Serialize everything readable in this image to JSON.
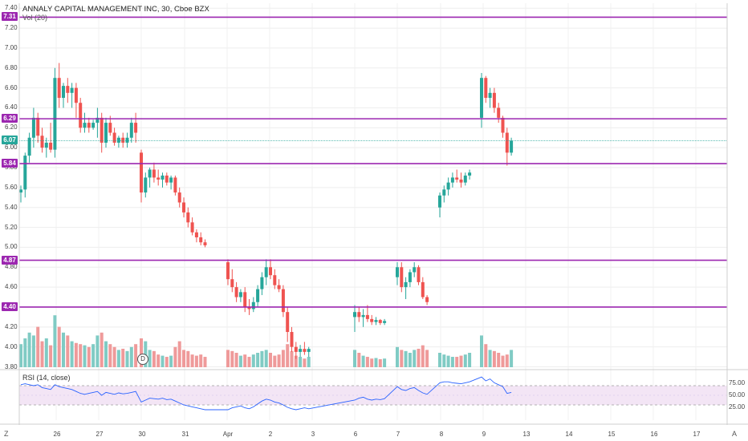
{
  "chart_title": "ANNALY CAPITAL MANAGEMENT INC, 30, Cboe BZX",
  "volume_label": "Vol (20)",
  "rsi_label": "RSI (14, close)",
  "corner_left": "Z",
  "corner_right": "A",
  "dividend_marker": "D",
  "price_ticks": [
    "7.40",
    "7.20",
    "7.00",
    "6.80",
    "6.60",
    "6.40",
    "6.20",
    "6.00",
    "5.80",
    "5.60",
    "5.40",
    "5.20",
    "5.00",
    "4.80",
    "4.60",
    "4.40",
    "4.20",
    "4.00",
    "3.80"
  ],
  "rsi_ticks": [
    "75.00",
    "50.00",
    "25.00"
  ],
  "date_ticks": [
    "26",
    "27",
    "30",
    "31",
    "Apr",
    "2",
    "3",
    "6",
    "7",
    "8",
    "9",
    "13",
    "14",
    "15",
    "16",
    "17"
  ],
  "levels": [
    {
      "value": "7.31",
      "color": "#9c27b0"
    },
    {
      "value": "6.29",
      "color": "#9c27b0"
    },
    {
      "value": "5.84",
      "color": "#9c27b0"
    },
    {
      "value": "4.87",
      "color": "#9c27b0"
    },
    {
      "value": "4.40",
      "color": "#9c27b0"
    }
  ],
  "last_price": {
    "value": "6.07",
    "color": "#26a69a"
  },
  "colors": {
    "up": "#26a69a",
    "down": "#ef5350",
    "level": "#9c27b0",
    "rsi_band": "#f3e5f5",
    "rsi_line": "#2962ff"
  },
  "chart_data": {
    "type": "candlestick",
    "y_range": [
      3.78,
      7.45
    ],
    "rsi_range": [
      0,
      100
    ],
    "candles": [
      [
        5.55,
        5.62,
        5.45,
        5.58
      ],
      [
        5.58,
        5.95,
        5.5,
        5.92
      ],
      [
        5.92,
        6.15,
        5.85,
        6.1
      ],
      [
        6.1,
        6.4,
        6.0,
        6.3
      ],
      [
        6.3,
        6.35,
        6.05,
        6.12
      ],
      [
        6.12,
        6.2,
        5.95,
        6.0
      ],
      [
        6.0,
        6.1,
        5.9,
        6.05
      ],
      [
        6.05,
        6.25,
        5.95,
        5.98
      ],
      [
        5.98,
        6.8,
        5.9,
        6.7
      ],
      [
        6.7,
        6.85,
        6.4,
        6.5
      ],
      [
        6.5,
        6.65,
        6.4,
        6.62
      ],
      [
        6.62,
        6.7,
        6.45,
        6.55
      ],
      [
        6.55,
        6.65,
        6.4,
        6.6
      ],
      [
        6.6,
        6.65,
        6.3,
        6.45
      ],
      [
        6.45,
        6.5,
        6.15,
        6.2
      ],
      [
        6.2,
        6.35,
        6.15,
        6.25
      ],
      [
        6.25,
        6.3,
        6.15,
        6.2
      ],
      [
        6.2,
        6.28,
        6.18,
        6.25
      ],
      [
        6.25,
        6.4,
        6.1,
        6.3
      ],
      [
        6.3,
        6.35,
        5.95,
        6.05
      ],
      [
        6.05,
        6.3,
        6.0,
        6.25
      ],
      [
        6.25,
        6.32,
        6.12,
        6.15
      ],
      [
        6.15,
        6.2,
        6.02,
        6.05
      ],
      [
        6.05,
        6.12,
        6.0,
        6.1
      ],
      [
        6.1,
        6.15,
        6.0,
        6.05
      ],
      [
        6.05,
        6.15,
        6.0,
        6.1
      ],
      [
        6.1,
        6.3,
        6.05,
        6.25
      ],
      [
        6.25,
        6.35,
        6.05,
        6.15
      ],
      [
        5.95,
        5.98,
        5.45,
        5.55
      ],
      [
        5.55,
        5.75,
        5.5,
        5.7
      ],
      [
        5.7,
        5.8,
        5.6,
        5.78
      ],
      [
        5.78,
        5.85,
        5.65,
        5.7
      ],
      [
        5.7,
        5.78,
        5.62,
        5.68
      ],
      [
        5.68,
        5.75,
        5.6,
        5.72
      ],
      [
        5.72,
        5.75,
        5.62,
        5.65
      ],
      [
        5.65,
        5.72,
        5.58,
        5.7
      ],
      [
        5.7,
        5.72,
        5.52,
        5.55
      ],
      [
        5.55,
        5.6,
        5.4,
        5.45
      ],
      [
        5.45,
        5.5,
        5.3,
        5.35
      ],
      [
        5.35,
        5.4,
        5.2,
        5.25
      ],
      [
        5.25,
        5.3,
        5.12,
        5.15
      ],
      [
        5.15,
        5.18,
        5.05,
        5.1
      ],
      [
        5.1,
        5.15,
        5.02,
        5.05
      ],
      [
        5.05,
        5.08,
        5.0,
        5.02
      ],
      [
        4.85,
        4.88,
        4.62,
        4.68
      ],
      [
        4.68,
        4.78,
        4.55,
        4.6
      ],
      [
        4.6,
        4.65,
        4.45,
        4.5
      ],
      [
        4.5,
        4.58,
        4.45,
        4.55
      ],
      [
        4.55,
        4.6,
        4.35,
        4.4
      ],
      [
        4.4,
        4.48,
        4.32,
        4.38
      ],
      [
        4.38,
        4.5,
        4.35,
        4.45
      ],
      [
        4.45,
        4.62,
        4.4,
        4.58
      ],
      [
        4.58,
        4.75,
        4.52,
        4.7
      ],
      [
        4.7,
        4.88,
        4.62,
        4.8
      ],
      [
        4.8,
        4.88,
        4.68,
        4.72
      ],
      [
        4.72,
        4.78,
        4.58,
        4.62
      ],
      [
        4.62,
        4.68,
        4.55,
        4.58
      ],
      [
        4.58,
        4.62,
        4.3,
        4.35
      ],
      [
        4.35,
        4.4,
        4.05,
        4.15
      ],
      [
        4.15,
        4.2,
        3.95,
        4.0
      ],
      [
        4.0,
        4.05,
        3.88,
        3.95
      ],
      [
        3.95,
        4.02,
        3.9,
        3.98
      ],
      [
        3.98,
        4.05,
        3.92,
        3.95
      ],
      [
        3.95,
        4.0,
        3.9,
        3.98
      ],
      [
        4.3,
        4.42,
        4.15,
        4.35
      ],
      [
        4.35,
        4.4,
        4.25,
        4.3
      ],
      [
        4.3,
        4.38,
        4.2,
        4.32
      ],
      [
        4.32,
        4.42,
        4.25,
        4.28
      ],
      [
        4.28,
        4.32,
        4.22,
        4.25
      ],
      [
        4.25,
        4.3,
        4.22,
        4.27
      ],
      [
        4.27,
        4.28,
        4.22,
        4.24
      ],
      [
        4.24,
        4.28,
        4.22,
        4.26
      ],
      [
        4.7,
        4.85,
        4.62,
        4.8
      ],
      [
        4.8,
        4.85,
        4.55,
        4.6
      ],
      [
        4.6,
        4.7,
        4.48,
        4.65
      ],
      [
        4.65,
        4.78,
        4.6,
        4.75
      ],
      [
        4.75,
        4.85,
        4.7,
        4.8
      ],
      [
        4.8,
        4.82,
        4.62,
        4.65
      ],
      [
        4.65,
        4.7,
        4.48,
        4.5
      ],
      [
        4.5,
        4.52,
        4.42,
        4.45
      ],
      [
        5.4,
        5.55,
        5.3,
        5.52
      ],
      [
        5.52,
        5.62,
        5.45,
        5.58
      ],
      [
        5.58,
        5.7,
        5.52,
        5.65
      ],
      [
        5.65,
        5.75,
        5.6,
        5.7
      ],
      [
        5.7,
        5.78,
        5.65,
        5.68
      ],
      [
        5.68,
        5.75,
        5.6,
        5.65
      ],
      [
        5.65,
        5.75,
        5.62,
        5.72
      ],
      [
        5.72,
        5.78,
        5.68,
        5.75
      ],
      [
        6.3,
        6.75,
        6.2,
        6.7
      ],
      [
        6.7,
        6.72,
        6.45,
        6.5
      ],
      [
        6.5,
        6.6,
        6.4,
        6.55
      ],
      [
        6.55,
        6.6,
        6.35,
        6.4
      ],
      [
        6.4,
        6.45,
        6.25,
        6.3
      ],
      [
        6.3,
        6.32,
        6.1,
        6.15
      ],
      [
        6.15,
        6.2,
        5.82,
        5.95
      ],
      [
        5.95,
        6.1,
        5.92,
        6.07
      ]
    ],
    "volume": [
      40,
      50,
      60,
      55,
      70,
      45,
      50,
      38,
      90,
      70,
      60,
      55,
      45,
      42,
      40,
      38,
      35,
      40,
      55,
      60,
      45,
      40,
      35,
      30,
      32,
      28,
      35,
      40,
      50,
      45,
      30,
      28,
      22,
      20,
      18,
      20,
      35,
      45,
      30,
      28,
      22,
      20,
      22,
      18,
      30,
      28,
      25,
      20,
      22,
      18,
      22,
      25,
      28,
      30,
      25,
      20,
      22,
      30,
      40,
      28,
      20,
      18,
      15,
      18,
      30,
      25,
      20,
      18,
      15,
      16,
      14,
      15,
      35,
      30,
      28,
      25,
      30,
      32,
      38,
      30,
      25,
      22,
      20,
      18,
      18,
      20,
      22,
      25,
      55,
      40,
      30,
      28,
      25,
      20,
      22,
      30
    ],
    "rsi": [
      72,
      74,
      72,
      70,
      72,
      66,
      64,
      62,
      72,
      68,
      66,
      64,
      62,
      58,
      54,
      52,
      54,
      56,
      58,
      50,
      56,
      54,
      52,
      55,
      53,
      54,
      56,
      58,
      36,
      40,
      44,
      43,
      42,
      44,
      41,
      42,
      38,
      34,
      30,
      28,
      26,
      24,
      22,
      20,
      20,
      24,
      26,
      28,
      24,
      22,
      26,
      32,
      38,
      42,
      40,
      36,
      34,
      30,
      25,
      22,
      20,
      22,
      24,
      22,
      40,
      44,
      46,
      42,
      40,
      42,
      41,
      43,
      68,
      62,
      60,
      64,
      66,
      60,
      55,
      52,
      76,
      78,
      78,
      76,
      75,
      74,
      76,
      78,
      88,
      80,
      84,
      76,
      72,
      68,
      54,
      56
    ]
  }
}
